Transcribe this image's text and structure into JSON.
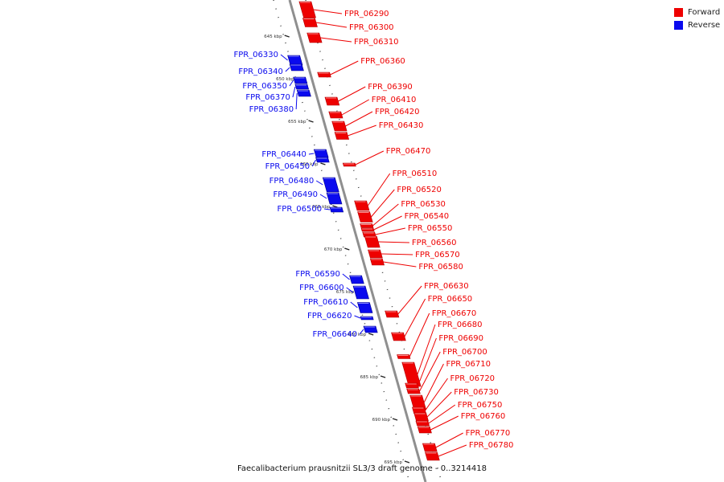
{
  "colors": {
    "forward": "#ee0000",
    "reverse": "#0a0aee",
    "backbone": "#8f8f8f",
    "tick": "#222222"
  },
  "legend": [
    {
      "label": "Forward",
      "color": "#ee0000"
    },
    {
      "label": "Reverse",
      "color": "#0a0aee"
    }
  ],
  "caption": "Faecalibacterium prausnitzii SL3/3 draft genome - 0..3214418",
  "ticks": [
    {
      "label": "645 kbp",
      "pos": 645
    },
    {
      "label": "650 kbp",
      "pos": 650
    },
    {
      "label": "655 kbp",
      "pos": 655
    },
    {
      "label": "660 kbp",
      "pos": 660
    },
    {
      "label": "665 kbp",
      "pos": 665
    },
    {
      "label": "670 kbp",
      "pos": 670
    },
    {
      "label": "675 kbp",
      "pos": 675
    },
    {
      "label": "680 kbp",
      "pos": 680
    },
    {
      "label": "685 kbp",
      "pos": 685
    },
    {
      "label": "690 kbp",
      "pos": 690
    },
    {
      "label": "695 kbp",
      "pos": 695
    }
  ],
  "genes": [
    {
      "label": "FPR_06290",
      "strand": "forward"
    },
    {
      "label": "FPR_06300",
      "strand": "forward"
    },
    {
      "label": "FPR_06310",
      "strand": "forward"
    },
    {
      "label": "FPR_06330",
      "strand": "reverse"
    },
    {
      "label": "FPR_06340",
      "strand": "reverse"
    },
    {
      "label": "FPR_06350",
      "strand": "reverse"
    },
    {
      "label": "FPR_06360",
      "strand": "forward"
    },
    {
      "label": "FPR_06370",
      "strand": "reverse"
    },
    {
      "label": "FPR_06380",
      "strand": "reverse"
    },
    {
      "label": "FPR_06390",
      "strand": "forward"
    },
    {
      "label": "FPR_06410",
      "strand": "forward"
    },
    {
      "label": "FPR_06420",
      "strand": "forward"
    },
    {
      "label": "FPR_06430",
      "strand": "forward"
    },
    {
      "label": "FPR_06440",
      "strand": "reverse"
    },
    {
      "label": "FPR_06450",
      "strand": "reverse"
    },
    {
      "label": "FPR_06470",
      "strand": "forward"
    },
    {
      "label": "FPR_06480",
      "strand": "reverse"
    },
    {
      "label": "FPR_06490",
      "strand": "reverse"
    },
    {
      "label": "FPR_06500",
      "strand": "reverse"
    },
    {
      "label": "FPR_06510",
      "strand": "forward"
    },
    {
      "label": "FPR_06520",
      "strand": "forward"
    },
    {
      "label": "FPR_06530",
      "strand": "forward"
    },
    {
      "label": "FPR_06540",
      "strand": "forward"
    },
    {
      "label": "FPR_06550",
      "strand": "forward"
    },
    {
      "label": "FPR_06560",
      "strand": "forward"
    },
    {
      "label": "FPR_06570",
      "strand": "forward"
    },
    {
      "label": "FPR_06580",
      "strand": "forward"
    },
    {
      "label": "FPR_06590",
      "strand": "reverse"
    },
    {
      "label": "FPR_06600",
      "strand": "reverse"
    },
    {
      "label": "FPR_06610",
      "strand": "reverse"
    },
    {
      "label": "FPR_06620",
      "strand": "reverse"
    },
    {
      "label": "FPR_06630",
      "strand": "forward"
    },
    {
      "label": "FPR_06640",
      "strand": "reverse"
    },
    {
      "label": "FPR_06650",
      "strand": "forward"
    },
    {
      "label": "FPR_06670",
      "strand": "forward"
    },
    {
      "label": "FPR_06680",
      "strand": "forward"
    },
    {
      "label": "FPR_06690",
      "strand": "forward"
    },
    {
      "label": "FPR_06700",
      "strand": "forward"
    },
    {
      "label": "FPR_06710",
      "strand": "forward"
    },
    {
      "label": "FPR_06720",
      "strand": "forward"
    },
    {
      "label": "FPR_06730",
      "strand": "forward"
    },
    {
      "label": "FPR_06750",
      "strand": "forward"
    },
    {
      "label": "FPR_06760",
      "strand": "forward"
    },
    {
      "label": "FPR_06770",
      "strand": "forward"
    },
    {
      "label": "FPR_06780",
      "strand": "forward"
    }
  ]
}
